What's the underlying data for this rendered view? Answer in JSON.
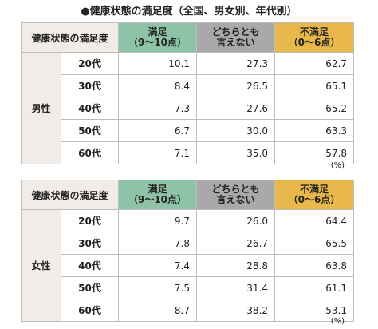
{
  "title": "●健康状態の満足度（全国、男女別、年代別）",
  "header": {
    "label": "健康状態の満足度",
    "satisfied_line1": "満足",
    "satisfied_line2": "（9〜10点）",
    "neutral_line1": "どちらとも",
    "neutral_line2": "言えない",
    "dissatisfied_line1": "不満足",
    "dissatisfied_line2": "（0〜6点）"
  },
  "colors": {
    "satisfied": "#8fc3a8",
    "neutral": "#a9a9a9",
    "dissatisfied": "#e8b84a",
    "label_bg": "#f2ece8"
  },
  "unit": "(%)",
  "tables": [
    {
      "gender": "男性",
      "rows": [
        {
          "age": "20代",
          "satisfied": "10.1",
          "neutral": "27.3",
          "dissatisfied": "62.7"
        },
        {
          "age": "30代",
          "satisfied": "8.4",
          "neutral": "26.5",
          "dissatisfied": "65.1"
        },
        {
          "age": "40代",
          "satisfied": "7.3",
          "neutral": "27.6",
          "dissatisfied": "65.2"
        },
        {
          "age": "50代",
          "satisfied": "6.7",
          "neutral": "30.0",
          "dissatisfied": "63.3"
        },
        {
          "age": "60代",
          "satisfied": "7.1",
          "neutral": "35.0",
          "dissatisfied": "57.8"
        }
      ]
    },
    {
      "gender": "女性",
      "rows": [
        {
          "age": "20代",
          "satisfied": "9.7",
          "neutral": "26.0",
          "dissatisfied": "64.4"
        },
        {
          "age": "30代",
          "satisfied": "7.8",
          "neutral": "26.7",
          "dissatisfied": "65.5"
        },
        {
          "age": "40代",
          "satisfied": "7.4",
          "neutral": "28.8",
          "dissatisfied": "63.8"
        },
        {
          "age": "50代",
          "satisfied": "7.5",
          "neutral": "31.4",
          "dissatisfied": "61.1"
        },
        {
          "age": "60代",
          "satisfied": "8.7",
          "neutral": "38.2",
          "dissatisfied": "53.1"
        }
      ]
    }
  ]
}
